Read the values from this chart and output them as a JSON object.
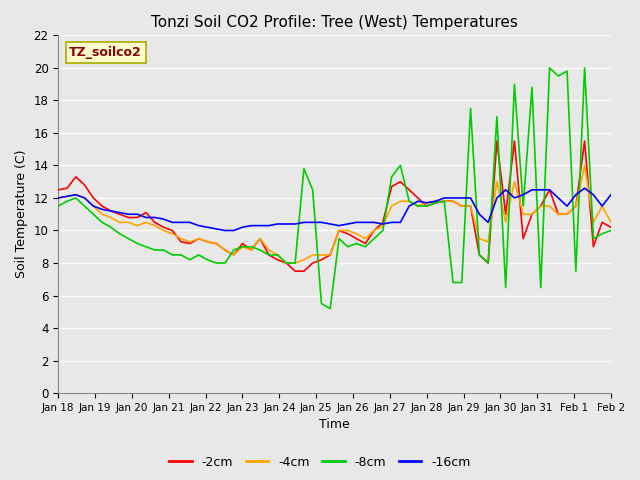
{
  "title": "Tonzi Soil CO2 Profile: Tree (West) Temperatures",
  "xlabel": "Time",
  "ylabel": "Soil Temperature (C)",
  "legend_label": "TZ_soilco2",
  "ylim": [
    0,
    22
  ],
  "yticks": [
    0,
    2,
    4,
    6,
    8,
    10,
    12,
    14,
    16,
    18,
    20,
    22
  ],
  "xtick_labels": [
    "Jan 18",
    "Jan 19",
    "Jan 20",
    "Jan 21",
    "Jan 22",
    "Jan 23",
    "Jan 24",
    "Jan 25",
    "Jan 26",
    "Jan 27",
    "Jan 28",
    "Jan 29",
    "Jan 30",
    "Jan 31",
    "Feb 1",
    "Feb 2"
  ],
  "series_labels": [
    "-2cm",
    "-4cm",
    "-8cm",
    "-16cm"
  ],
  "series_colors": [
    "#ff0000",
    "#ffa500",
    "#00cc00",
    "#0000ff"
  ],
  "line_width": 1.2,
  "background_color": "#e8e8e8",
  "plot_bg_color": "#e8e8e8",
  "grid_color": "#ffffff",
  "title_fontsize": 11,
  "data": {
    "y_2cm": [
      12.5,
      12.6,
      13.3,
      12.8,
      12.0,
      11.5,
      11.2,
      11.0,
      10.8,
      10.8,
      11.1,
      10.5,
      10.2,
      10.0,
      9.3,
      9.2,
      9.5,
      9.3,
      9.2,
      8.8,
      8.5,
      9.2,
      8.8,
      9.5,
      8.5,
      8.2,
      8.0,
      7.5,
      7.5,
      8.0,
      8.2,
      8.5,
      10.0,
      9.8,
      9.5,
      9.2,
      10.0,
      10.5,
      12.7,
      13.0,
      12.5,
      12.0,
      11.5,
      11.7,
      11.8,
      11.8,
      11.5,
      11.5,
      8.5,
      8.0,
      15.5,
      11.0,
      15.5,
      9.5,
      11.0,
      11.5,
      12.5,
      11.0,
      11.0,
      11.5,
      15.5,
      9.0,
      10.5,
      10.2
    ],
    "y_4cm": [
      12.0,
      12.1,
      12.2,
      12.0,
      11.5,
      11.0,
      10.8,
      10.5,
      10.5,
      10.3,
      10.5,
      10.3,
      10.0,
      9.8,
      9.5,
      9.3,
      9.5,
      9.3,
      9.2,
      8.8,
      8.5,
      9.0,
      8.8,
      9.5,
      8.8,
      8.5,
      8.0,
      8.0,
      8.2,
      8.5,
      8.5,
      8.5,
      10.0,
      10.0,
      9.8,
      9.5,
      10.0,
      10.3,
      11.5,
      11.8,
      11.8,
      11.5,
      11.7,
      11.8,
      11.8,
      11.8,
      11.5,
      11.5,
      9.5,
      9.3,
      13.0,
      10.5,
      13.0,
      11.0,
      11.0,
      11.5,
      11.5,
      11.0,
      11.0,
      11.5,
      14.0,
      10.5,
      11.5,
      10.5
    ],
    "y_8cm": [
      11.5,
      11.8,
      12.0,
      11.5,
      11.0,
      10.5,
      10.2,
      9.8,
      9.5,
      9.2,
      9.0,
      8.8,
      8.8,
      8.5,
      8.5,
      8.2,
      8.5,
      8.2,
      8.0,
      8.0,
      8.8,
      9.0,
      9.0,
      8.8,
      8.5,
      8.5,
      8.0,
      8.0,
      13.8,
      12.5,
      5.5,
      5.2,
      9.5,
      9.0,
      9.2,
      9.0,
      9.5,
      10.0,
      13.3,
      14.0,
      11.8,
      11.5,
      11.5,
      11.7,
      11.8,
      6.8,
      6.8,
      17.5,
      8.5,
      8.0,
      17.0,
      6.5,
      19.0,
      11.5,
      18.8,
      6.5,
      20.0,
      19.5,
      19.8,
      7.5,
      20.0,
      9.5,
      9.8,
      10.0
    ],
    "y_16cm": [
      12.0,
      12.1,
      12.2,
      12.0,
      11.5,
      11.3,
      11.2,
      11.1,
      11.0,
      11.0,
      10.8,
      10.8,
      10.7,
      10.5,
      10.5,
      10.5,
      10.3,
      10.2,
      10.1,
      10.0,
      10.0,
      10.2,
      10.3,
      10.3,
      10.3,
      10.4,
      10.4,
      10.4,
      10.5,
      10.5,
      10.5,
      10.4,
      10.3,
      10.4,
      10.5,
      10.5,
      10.5,
      10.4,
      10.5,
      10.5,
      11.5,
      11.8,
      11.7,
      11.8,
      12.0,
      12.0,
      12.0,
      12.0,
      11.0,
      10.5,
      12.0,
      12.5,
      12.0,
      12.2,
      12.5,
      12.5,
      12.5,
      12.0,
      11.5,
      12.2,
      12.6,
      12.2,
      11.5,
      12.2
    ]
  }
}
